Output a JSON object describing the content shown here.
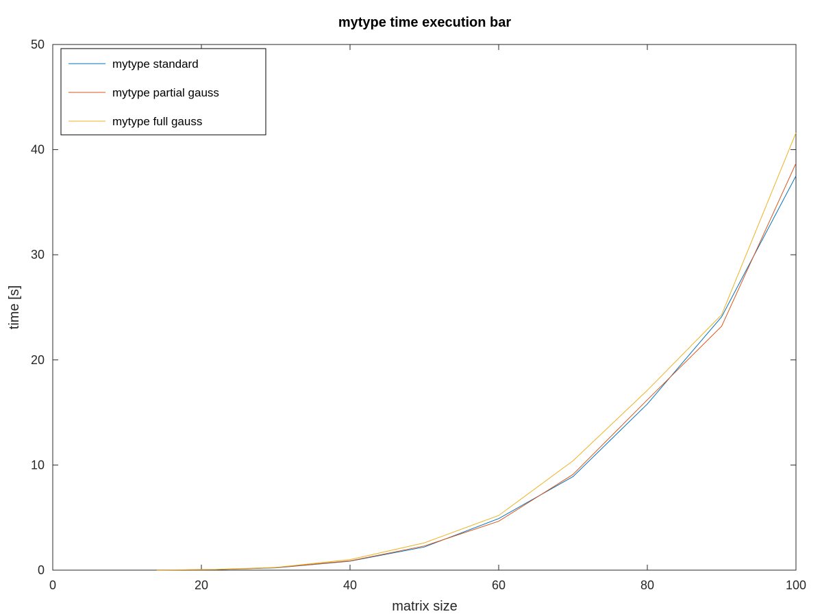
{
  "chart_data": {
    "type": "line",
    "title": "mytype time execution bar",
    "xlabel": "matrix size",
    "ylabel": "time [s]",
    "xlim": [
      0,
      100
    ],
    "ylim": [
      0,
      50
    ],
    "x_ticks": [
      "0",
      "20",
      "40",
      "60",
      "80",
      "100"
    ],
    "y_ticks": [
      "0",
      "10",
      "20",
      "30",
      "40",
      "50"
    ],
    "grid": false,
    "legend_position": "top-left",
    "x": [
      14,
      22,
      30,
      40,
      50,
      60,
      70,
      80,
      90,
      100
    ],
    "series": [
      {
        "name": "mytype standard",
        "color": "#0072BD",
        "values": [
          0.01,
          0.06,
          0.22,
          0.85,
          2.2,
          4.9,
          8.9,
          15.8,
          24.1,
          37.5
        ]
      },
      {
        "name": "mytype partial gauss",
        "color": "#D95319",
        "values": [
          0.01,
          0.06,
          0.24,
          0.88,
          2.3,
          4.65,
          9.1,
          16.2,
          23.2,
          38.7
        ]
      },
      {
        "name": "mytype full gauss",
        "color": "#EDB120",
        "values": [
          0.01,
          0.07,
          0.26,
          1.0,
          2.6,
          5.2,
          10.4,
          17.1,
          24.3,
          41.6
        ]
      }
    ]
  }
}
